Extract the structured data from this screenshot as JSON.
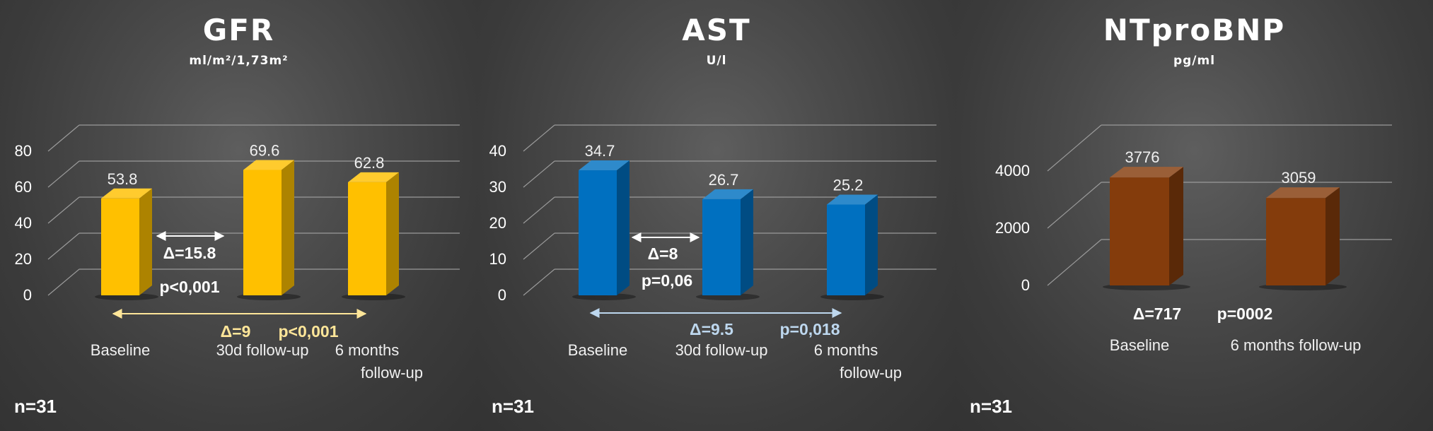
{
  "chart_data": [
    {
      "type": "bar",
      "title": "GFR",
      "ylabel": "ml/m²/1,73m²",
      "categories": [
        "Baseline",
        "30d follow-up",
        "6 months|follow-up"
      ],
      "values": [
        53.8,
        69.6,
        62.8
      ],
      "value_labels": [
        "53.8",
        "69.6",
        "62.8"
      ],
      "yticks": [
        0,
        20,
        40,
        60,
        80
      ],
      "ytick_labels": [
        "0",
        "20",
        "40",
        "60",
        "80"
      ],
      "ylim": [
        0,
        80
      ],
      "color": "#FFC000",
      "grid": true,
      "legend": "none",
      "footnote": "n=31",
      "annotations": [
        {
          "delta": "Δ=15.8",
          "p": "p<0,001",
          "from": 0,
          "to": 1,
          "color": "#ffffff"
        },
        {
          "delta": "Δ=9",
          "p": "p<0,001",
          "from": 0,
          "to": 2,
          "color": "#FFE699"
        }
      ]
    },
    {
      "type": "bar",
      "title": "AST",
      "ylabel": "U/l",
      "categories": [
        "Baseline",
        "30d follow-up",
        "6 months|follow-up"
      ],
      "values": [
        34.7,
        26.7,
        25.2
      ],
      "value_labels": [
        "34.7",
        "26.7",
        "25.2"
      ],
      "yticks": [
        0,
        10,
        20,
        30,
        40
      ],
      "ytick_labels": [
        "0",
        "10",
        "20",
        "30",
        "40"
      ],
      "ylim": [
        0,
        40
      ],
      "color": "#0070C0",
      "grid": true,
      "legend": "none",
      "footnote": "n=31",
      "annotations": [
        {
          "delta": "Δ=8",
          "p": "p=0,06",
          "from": 0,
          "to": 1,
          "color": "#ffffff"
        },
        {
          "delta": "Δ=9.5",
          "p": "p=0,018",
          "from": 0,
          "to": 2,
          "color": "#BDD7EE"
        }
      ]
    },
    {
      "type": "bar",
      "title": "NTproBNP",
      "ylabel": "pg/ml",
      "categories": [
        "Baseline",
        "6 months follow-up"
      ],
      "values": [
        3776,
        3059
      ],
      "value_labels": [
        "3776",
        "3059"
      ],
      "yticks": [
        0,
        2000,
        4000
      ],
      "ytick_labels": [
        "0",
        "2000",
        "4000"
      ],
      "ylim": [
        0,
        4000
      ],
      "color": "#843C0C",
      "grid": true,
      "legend": "none",
      "footnote": "n=31",
      "annotations": [
        {
          "delta": "Δ=717",
          "p": "p=0002",
          "color": "#ffffff"
        }
      ]
    }
  ]
}
